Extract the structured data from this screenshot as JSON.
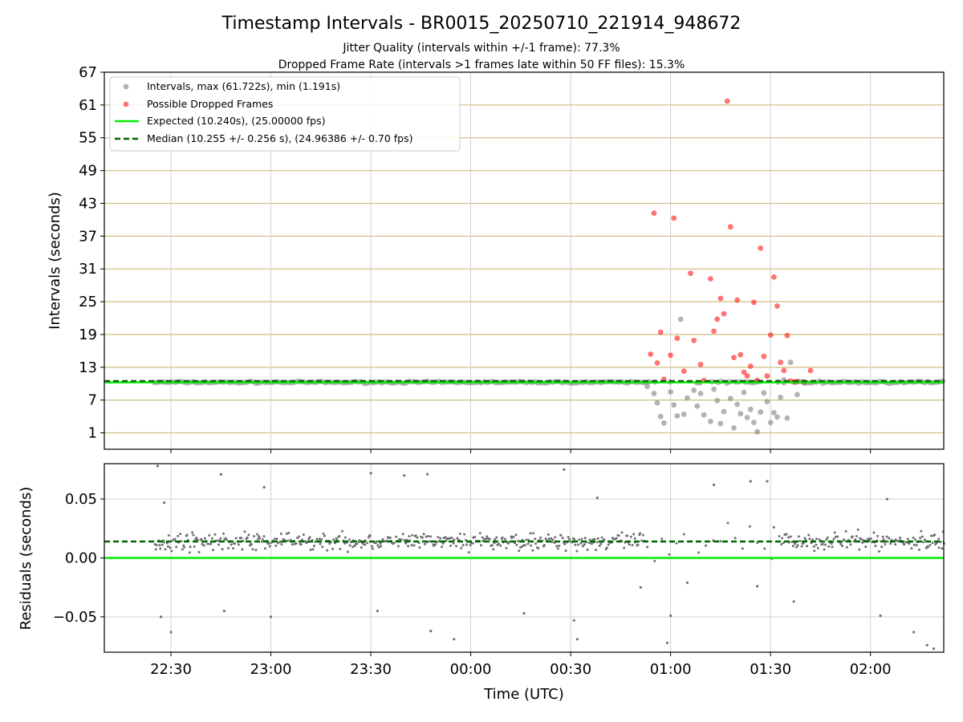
{
  "header": {
    "title": "Timestamp Intervals - BR0015_20250710_221914_948672",
    "subtitle1": "Jitter Quality (intervals within +/-1 frame): 77.3%",
    "subtitle2": "Dropped Frame Rate (intervals >1 frames late within 50 FF files): 15.3%"
  },
  "chart_data": [
    {
      "type": "scatter",
      "ylabel": "Intervals (seconds)",
      "ylim": [
        -2,
        67
      ],
      "xlim": [
        "2025-07-10T22:10",
        "2025-07-11T02:22"
      ],
      "yticks": [
        1,
        7,
        13,
        19,
        25,
        31,
        37,
        43,
        49,
        55,
        61,
        67
      ],
      "grid": "on",
      "legend_position": "top-left",
      "legend": [
        "Intervals, max (61.722s), min (1.191s)",
        "Possible Dropped Frames",
        "Expected (10.240s), (25.00000 fps)",
        "Median (10.255 +/- 0.256 s), (24.96386 +/- 0.70 fps)"
      ],
      "reference_lines": {
        "expected": 10.24,
        "median": 10.255
      },
      "colors": {
        "intervals": "#808080",
        "dropped": "#ff0000",
        "expected": "#00ee00",
        "median": "#006400",
        "hgrid": "#d2c38a",
        "vgrid": "#d0d0d0"
      },
      "series": [
        {
          "name": "Possible Dropped Frames",
          "x": [
            "2025-07-11T00:54",
            "2025-07-11T00:55",
            "2025-07-11T00:56",
            "2025-07-11T00:57",
            "2025-07-11T00:58",
            "2025-07-11T01:00",
            "2025-07-11T01:01",
            "2025-07-11T01:02",
            "2025-07-11T01:04",
            "2025-07-11T01:06",
            "2025-07-11T01:07",
            "2025-07-11T01:09",
            "2025-07-11T01:10",
            "2025-07-11T01:12",
            "2025-07-11T01:13",
            "2025-07-11T01:14",
            "2025-07-11T01:15",
            "2025-07-11T01:16",
            "2025-07-11T01:17",
            "2025-07-11T01:18",
            "2025-07-11T01:19",
            "2025-07-11T01:20",
            "2025-07-11T01:21",
            "2025-07-11T01:22",
            "2025-07-11T01:23",
            "2025-07-11T01:24",
            "2025-07-11T01:25",
            "2025-07-11T01:26",
            "2025-07-11T01:27",
            "2025-07-11T01:28",
            "2025-07-11T01:29",
            "2025-07-11T01:30",
            "2025-07-11T01:31",
            "2025-07-11T01:32",
            "2025-07-11T01:33",
            "2025-07-11T01:34",
            "2025-07-11T01:35",
            "2025-07-11T01:36",
            "2025-07-11T01:37",
            "2025-07-11T01:38",
            "2025-07-11T01:40",
            "2025-07-11T01:42"
          ],
          "y": [
            15.4,
            41.2,
            13.8,
            19.4,
            10.8,
            15.2,
            40.3,
            18.3,
            12.3,
            30.2,
            17.9,
            13.5,
            10.6,
            29.2,
            19.6,
            21.8,
            25.6,
            22.8,
            61.7,
            38.7,
            14.8,
            25.3,
            15.3,
            12.1,
            11.4,
            13.2,
            24.9,
            10.6,
            34.8,
            15.0,
            11.4,
            18.9,
            29.5,
            24.2,
            13.9,
            12.4,
            18.8,
            10.5,
            10.3,
            10.4,
            10.3,
            12.4
          ]
        },
        {
          "name": "Intervals",
          "x": [
            "2025-07-11T00:53",
            "2025-07-11T00:55",
            "2025-07-11T00:56",
            "2025-07-11T00:57",
            "2025-07-11T00:58",
            "2025-07-11T01:00",
            "2025-07-11T01:01",
            "2025-07-11T01:02",
            "2025-07-11T01:03",
            "2025-07-11T01:04",
            "2025-07-11T01:05",
            "2025-07-11T01:07",
            "2025-07-11T01:08",
            "2025-07-11T01:09",
            "2025-07-11T01:10",
            "2025-07-11T01:12",
            "2025-07-11T01:13",
            "2025-07-11T01:14",
            "2025-07-11T01:15",
            "2025-07-11T01:16",
            "2025-07-11T01:18",
            "2025-07-11T01:19",
            "2025-07-11T01:20",
            "2025-07-11T01:21",
            "2025-07-11T01:22",
            "2025-07-11T01:23",
            "2025-07-11T01:24",
            "2025-07-11T01:25",
            "2025-07-11T01:26",
            "2025-07-11T01:27",
            "2025-07-11T01:28",
            "2025-07-11T01:29",
            "2025-07-11T01:30",
            "2025-07-11T01:31",
            "2025-07-11T01:32",
            "2025-07-11T01:33",
            "2025-07-11T01:34",
            "2025-07-11T01:35",
            "2025-07-11T01:36",
            "2025-07-11T01:38"
          ],
          "y": [
            9.5,
            8.2,
            6.5,
            4.0,
            2.8,
            8.5,
            6.1,
            4.1,
            21.8,
            4.4,
            7.4,
            8.8,
            5.9,
            8.2,
            4.3,
            3.1,
            9.0,
            6.9,
            2.7,
            4.9,
            7.3,
            1.9,
            6.2,
            4.5,
            8.4,
            3.8,
            5.3,
            2.9,
            1.2,
            4.8,
            8.3,
            6.7,
            2.9,
            4.7,
            3.9,
            7.5,
            10.7,
            3.7,
            13.9,
            8.0
          ]
        }
      ],
      "baseline": {
        "name": "Intervals",
        "value": 10.255,
        "start": "2025-07-10T22:25",
        "end": "2025-07-11T02:22"
      }
    },
    {
      "type": "scatter",
      "xlabel": "Time (UTC)",
      "ylabel": "Residuals (seconds)",
      "ylim": [
        -0.08,
        0.08
      ],
      "yticks": [
        -0.05,
        0.0,
        0.05
      ],
      "ytick_labels": [
        "−0.05",
        "0.00",
        "0.05"
      ],
      "xticks": [
        "22:30",
        "23:00",
        "23:30",
        "00:00",
        "00:30",
        "01:00",
        "01:30",
        "02:00"
      ],
      "grid": "on",
      "reference_lines": {
        "expected": 0.0,
        "median": 0.014
      },
      "residuals": {
        "dense_segments": [
          {
            "start": "2025-07-10T22:25",
            "end": "2025-07-11T00:52",
            "center": 0.014,
            "spread": 0.011
          },
          {
            "start": "2025-07-11T01:33",
            "end": "2025-07-11T02:22",
            "center": 0.014,
            "spread": 0.011
          }
        ],
        "outliers_x": [
          "2025-07-10T22:26",
          "2025-07-10T22:27",
          "2025-07-10T22:28",
          "2025-07-10T22:30",
          "2025-07-10T22:45",
          "2025-07-10T22:46",
          "2025-07-10T22:58",
          "2025-07-10T23:00",
          "2025-07-10T23:30",
          "2025-07-10T23:32",
          "2025-07-10T23:40",
          "2025-07-10T23:47",
          "2025-07-10T23:48",
          "2025-07-10T23:55",
          "2025-07-11T00:16",
          "2025-07-11T00:28",
          "2025-07-11T00:31",
          "2025-07-11T00:32",
          "2025-07-11T00:38",
          "2025-07-11T00:51",
          "2025-07-11T00:59",
          "2025-07-11T01:00",
          "2025-07-11T01:05",
          "2025-07-11T01:13",
          "2025-07-11T01:24",
          "2025-07-11T01:26",
          "2025-07-11T01:29",
          "2025-07-11T01:31",
          "2025-07-11T01:37",
          "2025-07-11T02:03",
          "2025-07-11T02:05",
          "2025-07-11T02:13",
          "2025-07-11T02:17",
          "2025-07-11T02:19"
        ],
        "outliers_y": [
          0.078,
          -0.05,
          0.047,
          -0.063,
          0.071,
          -0.045,
          0.06,
          -0.05,
          0.072,
          -0.045,
          0.07,
          0.071,
          -0.062,
          -0.069,
          -0.047,
          0.075,
          -0.053,
          -0.069,
          0.051,
          -0.025,
          -0.072,
          -0.049,
          -0.021,
          0.062,
          0.065,
          -0.024,
          0.065,
          0.026,
          -0.037,
          -0.049,
          0.05,
          -0.063,
          -0.074,
          -0.077
        ]
      }
    }
  ]
}
